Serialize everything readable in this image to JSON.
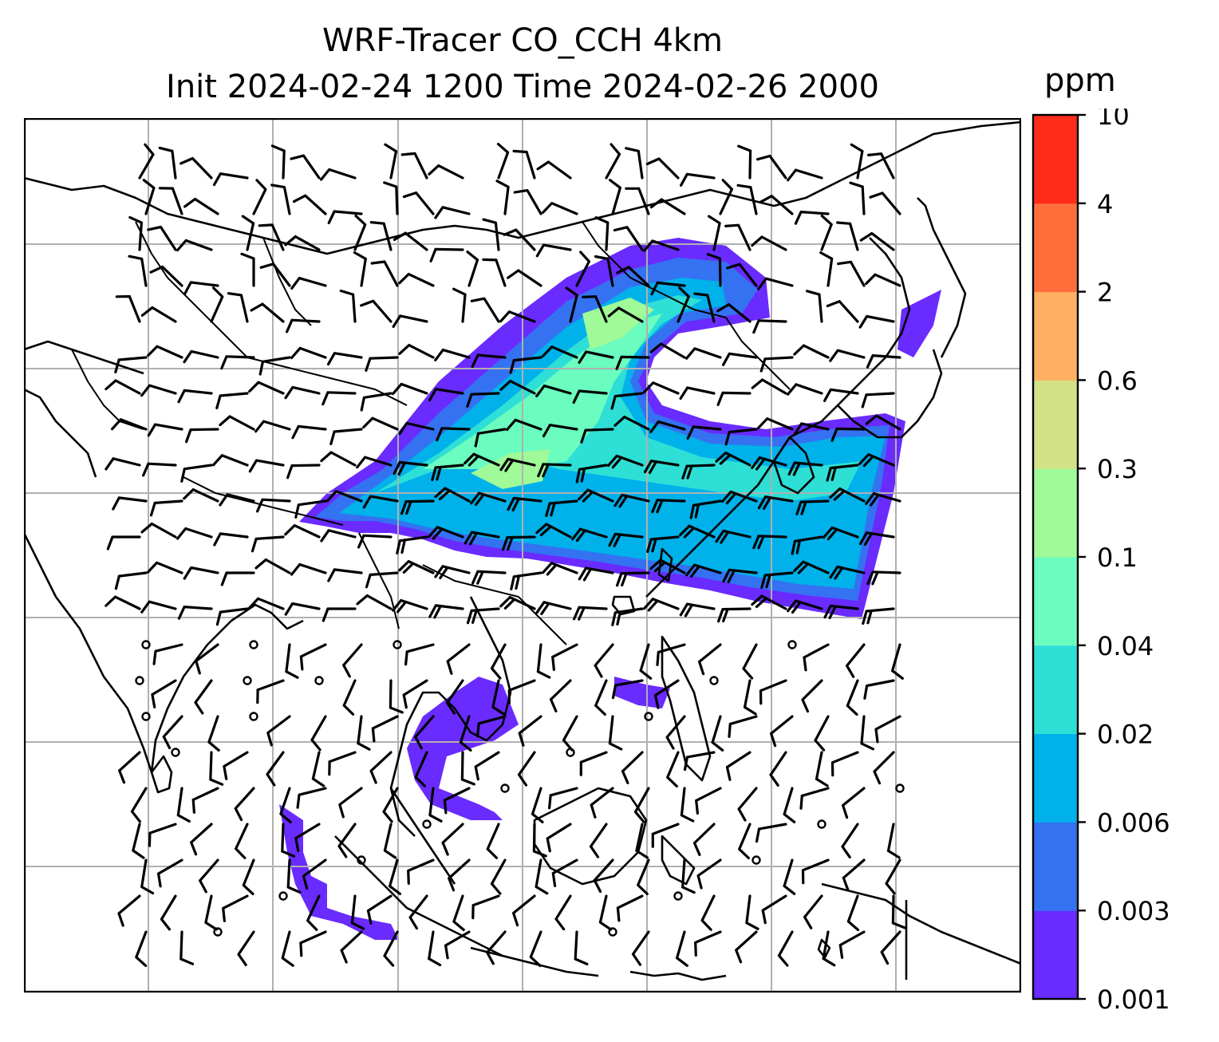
{
  "title": {
    "line1": "WRF-Tracer CO_CCH 4km",
    "line2": "Init 2024-02-24 1200 Time 2024-02-26 2000"
  },
  "colorbar": {
    "unit": "ppm",
    "levels": [
      "0.001",
      "0.003",
      "0.006",
      "0.02",
      "0.04",
      "0.1",
      "0.3",
      "0.6",
      "2",
      "4",
      "10"
    ],
    "colors": [
      "#6a2bff",
      "#3472f2",
      "#00b1ea",
      "#2edfd6",
      "#6bfcbf",
      "#9ffa97",
      "#d3e286",
      "#ffb062",
      "#ff6f3c",
      "#ff2d19"
    ]
  },
  "map": {
    "grid": "on",
    "features": [
      "coastlines",
      "country-borders",
      "wind-barbs",
      "tracer-concentration"
    ]
  }
}
